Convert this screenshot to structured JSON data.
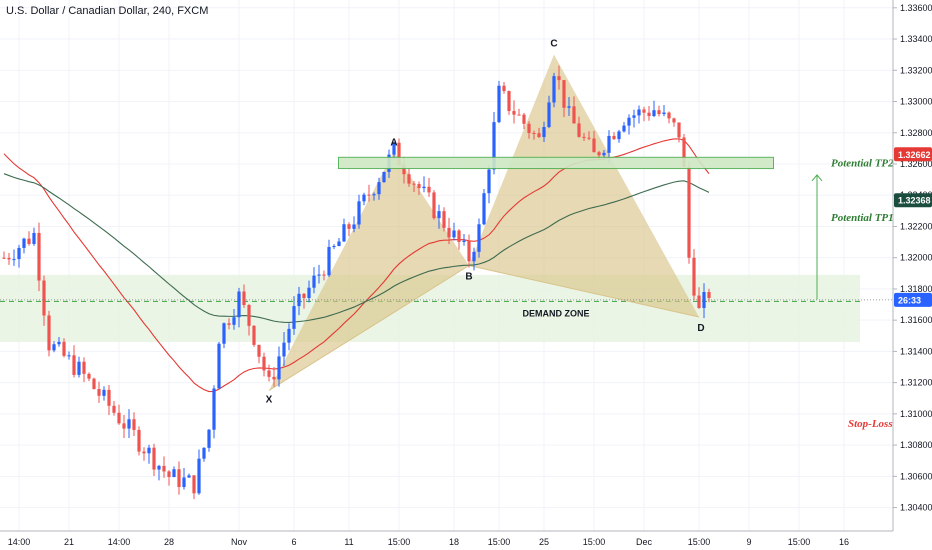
{
  "title": "U.S. Dollar / Canadian Dollar, 240, FXCM",
  "colors": {
    "up": "#2962ff",
    "down": "#ef5350",
    "ema_fast": "#e53935",
    "ema_slow": "#3e6b50",
    "pattern": "#d9c48a",
    "zone": "#e6f2e0",
    "tp_box": "#cfe8c4",
    "tp_text": "#2e7d32",
    "sl_text": "#e53935"
  },
  "chart_data": {
    "type": "candlestick",
    "symbol": "U.S. Dollar / Canadian Dollar",
    "timeframe": "240",
    "source": "FXCM",
    "y_ticks": [
      "1.33600",
      "1.33400",
      "1.33200",
      "1.33000",
      "1.32800",
      "1.32600",
      "1.32400",
      "1.32200",
      "1.32000",
      "1.31800",
      "1.31600",
      "1.31400",
      "1.31200",
      "1.31000",
      "1.30800",
      "1.30600",
      "1.30400"
    ],
    "y_range": [
      1.3025,
      1.3365
    ],
    "x_ticks": [
      "14:00",
      "21",
      "14:00",
      "28",
      "Nov",
      "6",
      "11",
      "15:00",
      "18",
      "15:00",
      "25",
      "15:00",
      "Dec",
      "15:00",
      "9",
      "15:00",
      "16"
    ],
    "x_ticks_idx": [
      3,
      13,
      23,
      33,
      47,
      58,
      69,
      79,
      90,
      99,
      108,
      118,
      128,
      139,
      149,
      159,
      168
    ],
    "n_bars": 175,
    "price_tags": [
      {
        "value": 1.32662,
        "text": "1.32662",
        "bg": "#e53935"
      },
      {
        "value": 1.32368,
        "text": "1.32368",
        "bg": "#1b4d3e"
      },
      {
        "value": 1.3173,
        "text": "26:33",
        "bg": "#2962ff"
      }
    ],
    "current_price": 1.3173,
    "ema_fast_label": "",
    "ema_slow_label": "",
    "pattern_points": [
      {
        "label": "X",
        "i": 53,
        "price": 1.3115
      },
      {
        "label": "A",
        "i": 78,
        "price": 1.3268
      },
      {
        "label": "B",
        "i": 93,
        "price": 1.3195
      },
      {
        "label": "C",
        "i": 110,
        "price": 1.333
      },
      {
        "label": "D",
        "i": 139,
        "price": 1.3162
      }
    ],
    "demand_zone": {
      "label": "DEMAND ZONE",
      "top": 1.3189,
      "bottom": 1.3146,
      "line": 1.3172
    },
    "tp2_box": {
      "top": 1.3263,
      "bottom": 1.3259,
      "i_start": 67,
      "i_end": 154
    },
    "annotations": {
      "tp2": "Potential TP2",
      "tp1": "Potential TP1",
      "sl": "Stop-Loss"
    },
    "stop_loss": 1.3094
  }
}
